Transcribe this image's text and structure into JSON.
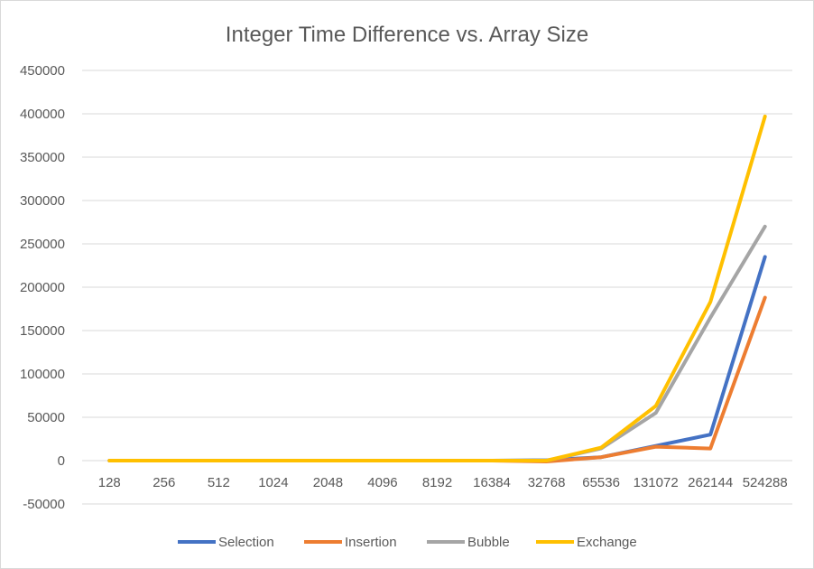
{
  "chart_data": {
    "type": "line",
    "title": "Integer Time Difference vs. Array Size",
    "xlabel": "",
    "ylabel": "",
    "categories": [
      "128",
      "256",
      "512",
      "1024",
      "2048",
      "4096",
      "8192",
      "16384",
      "32768",
      "65536",
      "131072",
      "262144",
      "524288"
    ],
    "ylim": [
      -50000,
      450000
    ],
    "yticks": [
      -50000,
      0,
      50000,
      100000,
      150000,
      200000,
      250000,
      300000,
      350000,
      400000,
      450000
    ],
    "grid": true,
    "legend_position": "bottom",
    "series": [
      {
        "name": "Selection",
        "color": "#4472C4",
        "values": [
          0,
          0,
          0,
          0,
          0,
          0,
          0,
          0,
          500,
          4000,
          17000,
          30000,
          235000
        ]
      },
      {
        "name": "Insertion",
        "color": "#ED7D31",
        "values": [
          0,
          0,
          0,
          0,
          0,
          0,
          0,
          0,
          -1000,
          4000,
          16000,
          14000,
          188000
        ]
      },
      {
        "name": "Bubble",
        "color": "#A5A5A5",
        "values": [
          0,
          0,
          0,
          0,
          0,
          0,
          0,
          0,
          0,
          14000,
          55000,
          165000,
          270000
        ]
      },
      {
        "name": "Exchange",
        "color": "#FFC000",
        "values": [
          0,
          0,
          0,
          0,
          0,
          0,
          0,
          0,
          0,
          15000,
          63000,
          183000,
          397000
        ]
      }
    ]
  }
}
